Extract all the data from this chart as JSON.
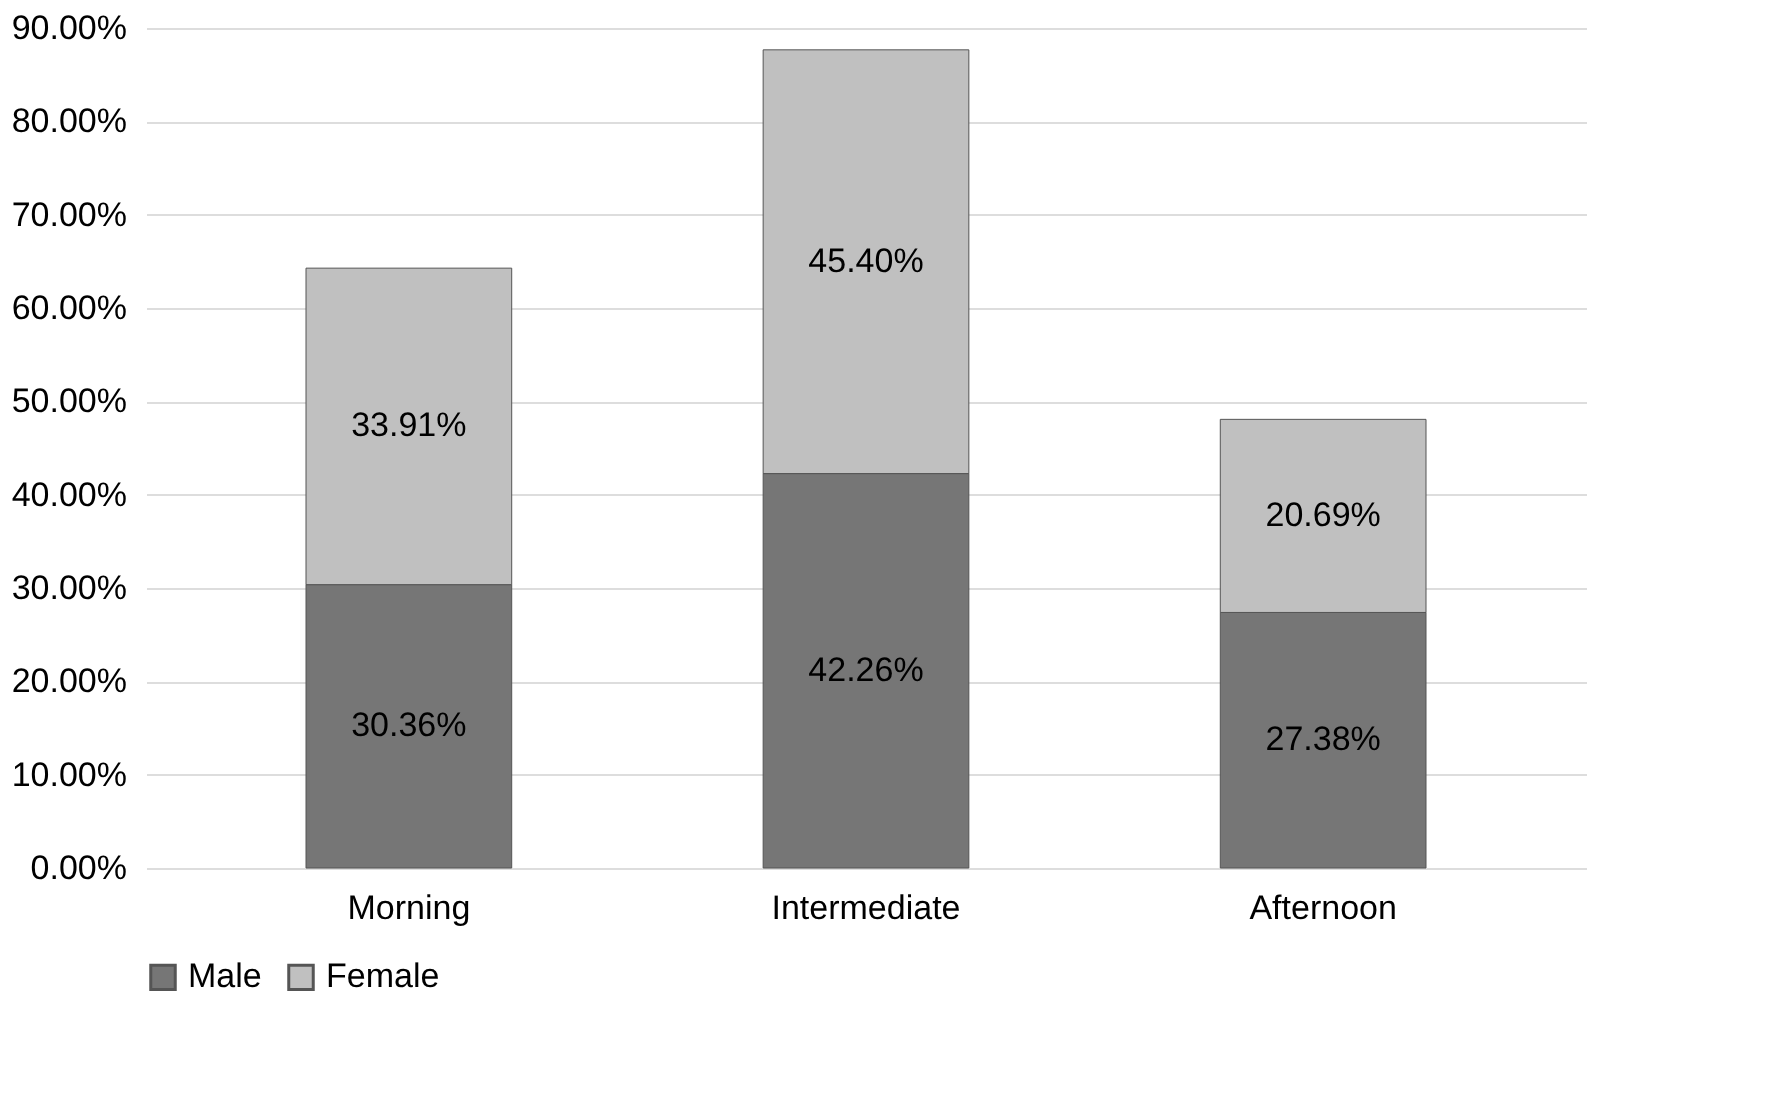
{
  "chart_data": {
    "type": "bar",
    "stacked": true,
    "categories": [
      "Morning",
      "Intermediate",
      "Afternoon"
    ],
    "series": [
      {
        "name": "Male",
        "color": "#767676",
        "values": [
          30.36,
          42.26,
          27.38
        ],
        "value_labels": [
          "30.36%",
          "42.26%",
          "27.38%"
        ]
      },
      {
        "name": "Female",
        "color": "#c0c0c0",
        "values": [
          33.91,
          45.4,
          20.69
        ],
        "value_labels": [
          "33.91%",
          "45.40%",
          "20.69%"
        ]
      }
    ],
    "ylim": [
      0,
      90
    ],
    "yticks": [
      {
        "value": 0,
        "label": "0.00%"
      },
      {
        "value": 10,
        "label": "10.00%"
      },
      {
        "value": 20,
        "label": "20.00%"
      },
      {
        "value": 30,
        "label": "30.00%"
      },
      {
        "value": 40,
        "label": "40.00%"
      },
      {
        "value": 50,
        "label": "50.00%"
      },
      {
        "value": 60,
        "label": "60.00%"
      },
      {
        "value": 70,
        "label": "70.00%"
      },
      {
        "value": 80,
        "label": "80.00%"
      },
      {
        "value": 90,
        "label": "90.00%"
      }
    ],
    "grid": "y",
    "legend": "bottom"
  }
}
